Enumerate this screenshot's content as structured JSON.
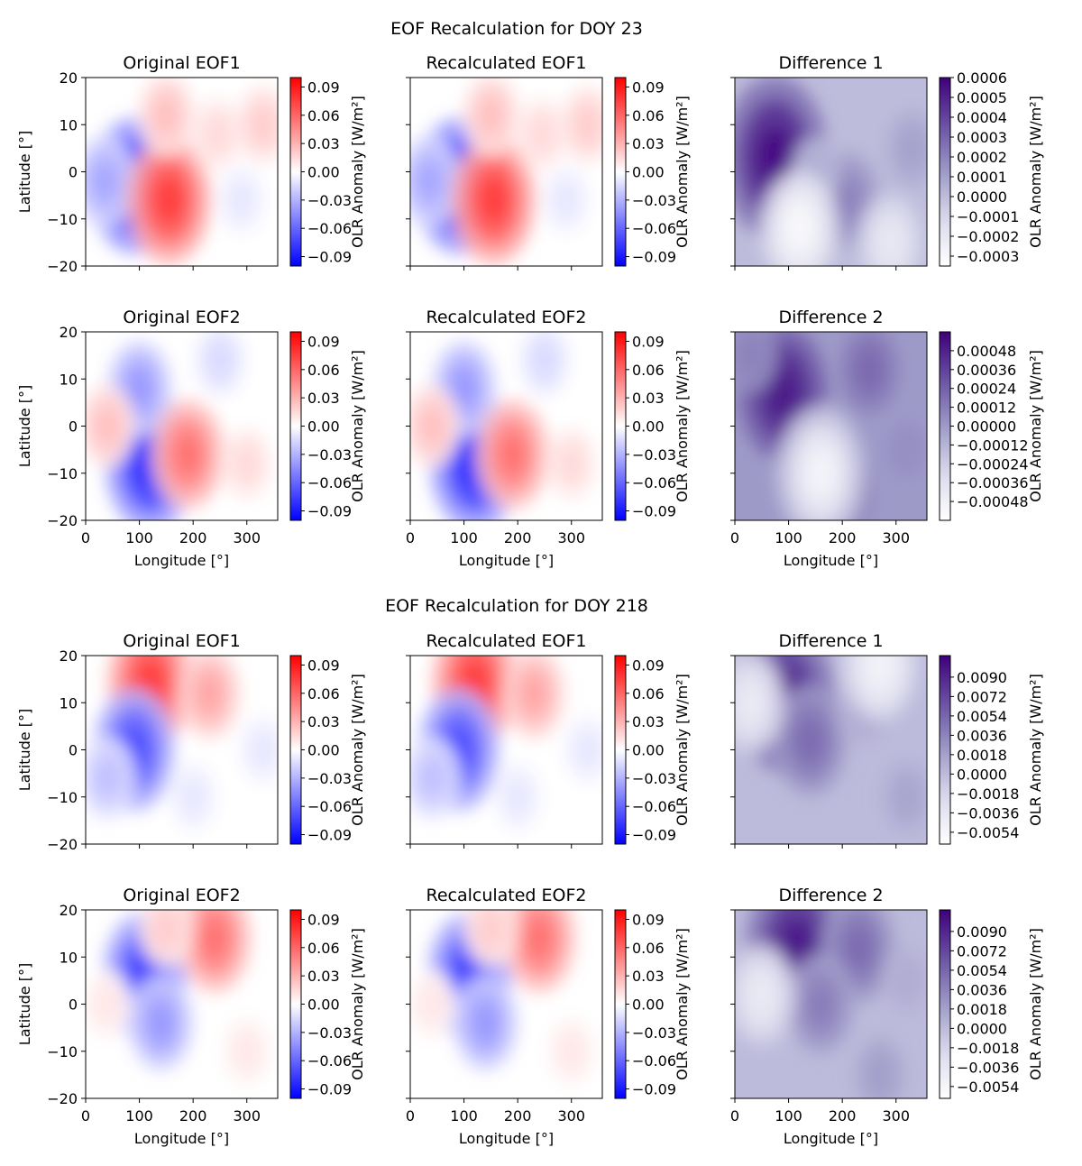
{
  "chart_data": [
    {
      "title": "EOF Recalculation for DOY 23",
      "xlabel": "Longitude [°]",
      "ylabel": "Latitude [°]",
      "xlim": [
        0,
        357.5
      ],
      "ylim": [
        -20,
        20
      ],
      "xticks": [
        "0",
        "100",
        "200",
        "300"
      ],
      "yticks": [
        "20",
        "10",
        "0",
        "−10",
        "−20"
      ],
      "colorbar_label": "OLR Anomaly [W/m²]",
      "panels": [
        {
          "type": "heatmap",
          "title": "Original EOF1",
          "cmap": "bwr",
          "colorbar_ticks": [
            "0.09",
            "0.06",
            "0.03",
            "0.00",
            "−0.03",
            "−0.06",
            "−0.09"
          ],
          "range": [
            -0.1,
            0.1
          ],
          "features": [
            {
              "lon": 90,
              "lat": -3,
              "value": -0.085
            },
            {
              "lon": 35,
              "lat": -2,
              "value": -0.035
            },
            {
              "lon": 155,
              "lat": -6,
              "value": 0.075
            },
            {
              "lon": 150,
              "lat": 12,
              "value": 0.025
            },
            {
              "lon": 245,
              "lat": 8,
              "value": 0.015
            },
            {
              "lon": 330,
              "lat": 10,
              "value": 0.02
            },
            {
              "lon": 290,
              "lat": -6,
              "value": -0.01
            }
          ]
        },
        {
          "type": "heatmap",
          "title": "Recalculated EOF1",
          "cmap": "bwr",
          "colorbar_ticks": [
            "0.09",
            "0.06",
            "0.03",
            "0.00",
            "−0.03",
            "−0.06",
            "−0.09"
          ],
          "range": [
            -0.1,
            0.1
          ],
          "features": [
            {
              "lon": 90,
              "lat": -3,
              "value": -0.085
            },
            {
              "lon": 35,
              "lat": -2,
              "value": -0.035
            },
            {
              "lon": 155,
              "lat": -6,
              "value": 0.075
            },
            {
              "lon": 150,
              "lat": 12,
              "value": 0.025
            },
            {
              "lon": 245,
              "lat": 8,
              "value": 0.015
            },
            {
              "lon": 330,
              "lat": 10,
              "value": 0.02
            },
            {
              "lon": 290,
              "lat": -6,
              "value": -0.01
            }
          ]
        },
        {
          "type": "heatmap",
          "title": "Difference 1",
          "cmap": "purples",
          "colorbar_ticks": [
            "0.0006",
            "0.0005",
            "0.0004",
            "0.0003",
            "0.0002",
            "0.0001",
            "0.0000",
            "−0.0001",
            "−0.0002",
            "−0.0003"
          ],
          "range": [
            -0.00035,
            0.0006
          ],
          "features": [
            {
              "lon": 75,
              "lat": 3,
              "value": 0.00055
            },
            {
              "lon": 210,
              "lat": -6,
              "value": 0.0002
            },
            {
              "lon": 330,
              "lat": 5,
              "value": 0.0001
            },
            {
              "lon": 150,
              "lat": 0,
              "value": 5e-05
            },
            {
              "lon": 120,
              "lat": -12,
              "value": -0.0003
            },
            {
              "lon": 290,
              "lat": -15,
              "value": -0.0002
            }
          ]
        }
      ]
    },
    {
      "title": "",
      "xlabel": "Longitude [°]",
      "ylabel": "Latitude [°]",
      "xlim": [
        0,
        357.5
      ],
      "ylim": [
        -20,
        20
      ],
      "xticks": [
        "0",
        "100",
        "200",
        "300"
      ],
      "yticks": [
        "20",
        "10",
        "0",
        "−10",
        "−20"
      ],
      "colorbar_label": "OLR Anomaly [W/m²]",
      "panels": [
        {
          "type": "heatmap",
          "title": "Original EOF2",
          "cmap": "bwr",
          "colorbar_ticks": [
            "0.09",
            "0.06",
            "0.03",
            "0.00",
            "−0.03",
            "−0.06",
            "−0.09"
          ],
          "range": [
            -0.1,
            0.1
          ],
          "features": [
            {
              "lon": 120,
              "lat": -8,
              "value": -0.085
            },
            {
              "lon": 100,
              "lat": 8,
              "value": -0.04
            },
            {
              "lon": 190,
              "lat": -6,
              "value": 0.055
            },
            {
              "lon": 40,
              "lat": 0,
              "value": 0.025
            },
            {
              "lon": 250,
              "lat": 14,
              "value": -0.015
            },
            {
              "lon": 300,
              "lat": -8,
              "value": 0.015
            }
          ]
        },
        {
          "type": "heatmap",
          "title": "Recalculated EOF2",
          "cmap": "bwr",
          "colorbar_ticks": [
            "0.09",
            "0.06",
            "0.03",
            "0.00",
            "−0.03",
            "−0.06",
            "−0.09"
          ],
          "range": [
            -0.1,
            0.1
          ],
          "features": [
            {
              "lon": 120,
              "lat": -8,
              "value": -0.085
            },
            {
              "lon": 100,
              "lat": 8,
              "value": -0.04
            },
            {
              "lon": 190,
              "lat": -6,
              "value": 0.055
            },
            {
              "lon": 40,
              "lat": 0,
              "value": 0.025
            },
            {
              "lon": 250,
              "lat": 14,
              "value": -0.015
            },
            {
              "lon": 300,
              "lat": -8,
              "value": 0.015
            }
          ]
        },
        {
          "type": "heatmap",
          "title": "Difference 2",
          "cmap": "purples",
          "colorbar_ticks": [
            "0.00048",
            "0.00036",
            "0.00024",
            "0.00012",
            "0.00000",
            "−0.00012",
            "−0.00024",
            "−0.00036",
            "−0.00048"
          ],
          "range": [
            -0.0006,
            0.0006
          ],
          "features": [
            {
              "lon": 90,
              "lat": 7,
              "value": 0.0005
            },
            {
              "lon": 250,
              "lat": 12,
              "value": 0.0002
            },
            {
              "lon": 200,
              "lat": -14,
              "value": 0.0002
            },
            {
              "lon": 160,
              "lat": -10,
              "value": -0.0005
            },
            {
              "lon": 30,
              "lat": 15,
              "value": 0.0001
            },
            {
              "lon": 320,
              "lat": -5,
              "value": 5e-05
            }
          ]
        }
      ]
    },
    {
      "title": "EOF Recalculation for DOY 218",
      "xlabel": "Longitude [°]",
      "ylabel": "Latitude [°]",
      "xlim": [
        0,
        357.5
      ],
      "ylim": [
        -20,
        20
      ],
      "xticks": [
        "0",
        "100",
        "200",
        "300"
      ],
      "yticks": [
        "20",
        "10",
        "0",
        "−10",
        "−20"
      ],
      "colorbar_label": "OLR Anomaly [W/m²]",
      "panels": [
        {
          "type": "heatmap",
          "title": "Original EOF1",
          "cmap": "bwr",
          "colorbar_ticks": [
            "0.09",
            "0.06",
            "0.03",
            "0.00",
            "−0.03",
            "−0.06",
            "−0.09"
          ],
          "range": [
            -0.1,
            0.1
          ],
          "features": [
            {
              "lon": 120,
              "lat": 14,
              "value": 0.075
            },
            {
              "lon": 230,
              "lat": 12,
              "value": 0.035
            },
            {
              "lon": 90,
              "lat": 0,
              "value": -0.07
            },
            {
              "lon": 40,
              "lat": -6,
              "value": -0.025
            },
            {
              "lon": 200,
              "lat": -10,
              "value": -0.01
            },
            {
              "lon": 330,
              "lat": 0,
              "value": -0.01
            }
          ]
        },
        {
          "type": "heatmap",
          "title": "Recalculated EOF1",
          "cmap": "bwr",
          "colorbar_ticks": [
            "0.09",
            "0.06",
            "0.03",
            "0.00",
            "−0.03",
            "−0.06",
            "−0.09"
          ],
          "range": [
            -0.1,
            0.1
          ],
          "features": [
            {
              "lon": 120,
              "lat": 14,
              "value": 0.075
            },
            {
              "lon": 230,
              "lat": 12,
              "value": 0.035
            },
            {
              "lon": 90,
              "lat": 0,
              "value": -0.07
            },
            {
              "lon": 40,
              "lat": -6,
              "value": -0.025
            },
            {
              "lon": 200,
              "lat": -10,
              "value": -0.01
            },
            {
              "lon": 330,
              "lat": 0,
              "value": -0.01
            }
          ]
        },
        {
          "type": "heatmap",
          "title": "Difference 1",
          "cmap": "purples",
          "colorbar_ticks": [
            "0.0090",
            "0.0072",
            "0.0054",
            "0.0036",
            "0.0018",
            "0.0000",
            "−0.0018",
            "−0.0036",
            "−0.0054"
          ],
          "range": [
            -0.0065,
            0.011
          ],
          "features": [
            {
              "lon": 95,
              "lat": 11,
              "value": 0.009
            },
            {
              "lon": 140,
              "lat": 2,
              "value": 0.005
            },
            {
              "lon": 240,
              "lat": 8,
              "value": 0.001
            },
            {
              "lon": 30,
              "lat": 10,
              "value": -0.004
            },
            {
              "lon": 270,
              "lat": 18,
              "value": -0.005
            },
            {
              "lon": 320,
              "lat": -10,
              "value": 0.0015
            }
          ]
        }
      ]
    },
    {
      "title": "",
      "xlabel": "Longitude [°]",
      "ylabel": "Latitude [°]",
      "xlim": [
        0,
        357.5
      ],
      "ylim": [
        -20,
        20
      ],
      "xticks": [
        "0",
        "100",
        "200",
        "300"
      ],
      "yticks": [
        "20",
        "10",
        "0",
        "−10",
        "−20"
      ],
      "colorbar_label": "OLR Anomaly [W/m²]",
      "panels": [
        {
          "type": "heatmap",
          "title": "Original EOF2",
          "cmap": "bwr",
          "colorbar_ticks": [
            "0.09",
            "0.06",
            "0.03",
            "0.00",
            "−0.03",
            "−0.06",
            "−0.09"
          ],
          "range": [
            -0.1,
            0.1
          ],
          "features": [
            {
              "lon": 110,
              "lat": 6,
              "value": -0.075
            },
            {
              "lon": 140,
              "lat": -4,
              "value": -0.04
            },
            {
              "lon": 240,
              "lat": 14,
              "value": 0.055
            },
            {
              "lon": 150,
              "lat": 16,
              "value": 0.02
            },
            {
              "lon": 40,
              "lat": 0,
              "value": 0.01
            },
            {
              "lon": 300,
              "lat": -10,
              "value": 0.01
            }
          ]
        },
        {
          "type": "heatmap",
          "title": "Recalculated EOF2",
          "cmap": "bwr",
          "colorbar_ticks": [
            "0.09",
            "0.06",
            "0.03",
            "0.00",
            "−0.03",
            "−0.06",
            "−0.09"
          ],
          "range": [
            -0.1,
            0.1
          ],
          "features": [
            {
              "lon": 110,
              "lat": 6,
              "value": -0.075
            },
            {
              "lon": 140,
              "lat": -4,
              "value": -0.04
            },
            {
              "lon": 240,
              "lat": 14,
              "value": 0.055
            },
            {
              "lon": 150,
              "lat": 16,
              "value": 0.02
            },
            {
              "lon": 40,
              "lat": 0,
              "value": 0.01
            },
            {
              "lon": 300,
              "lat": -10,
              "value": 0.01
            }
          ]
        },
        {
          "type": "heatmap",
          "title": "Difference 2",
          "cmap": "purples",
          "colorbar_ticks": [
            "0.0090",
            "0.0072",
            "0.0054",
            "0.0036",
            "0.0018",
            "0.0000",
            "−0.0018",
            "−0.0036",
            "−0.0054"
          ],
          "range": [
            -0.0065,
            0.011
          ],
          "features": [
            {
              "lon": 115,
              "lat": 12,
              "value": 0.0095
            },
            {
              "lon": 230,
              "lat": 12,
              "value": 0.005
            },
            {
              "lon": 160,
              "lat": 0,
              "value": 0.004
            },
            {
              "lon": 50,
              "lat": 2,
              "value": -0.004
            },
            {
              "lon": 320,
              "lat": 5,
              "value": 0.001
            },
            {
              "lon": 270,
              "lat": -15,
              "value": 0.002
            }
          ]
        }
      ]
    }
  ]
}
